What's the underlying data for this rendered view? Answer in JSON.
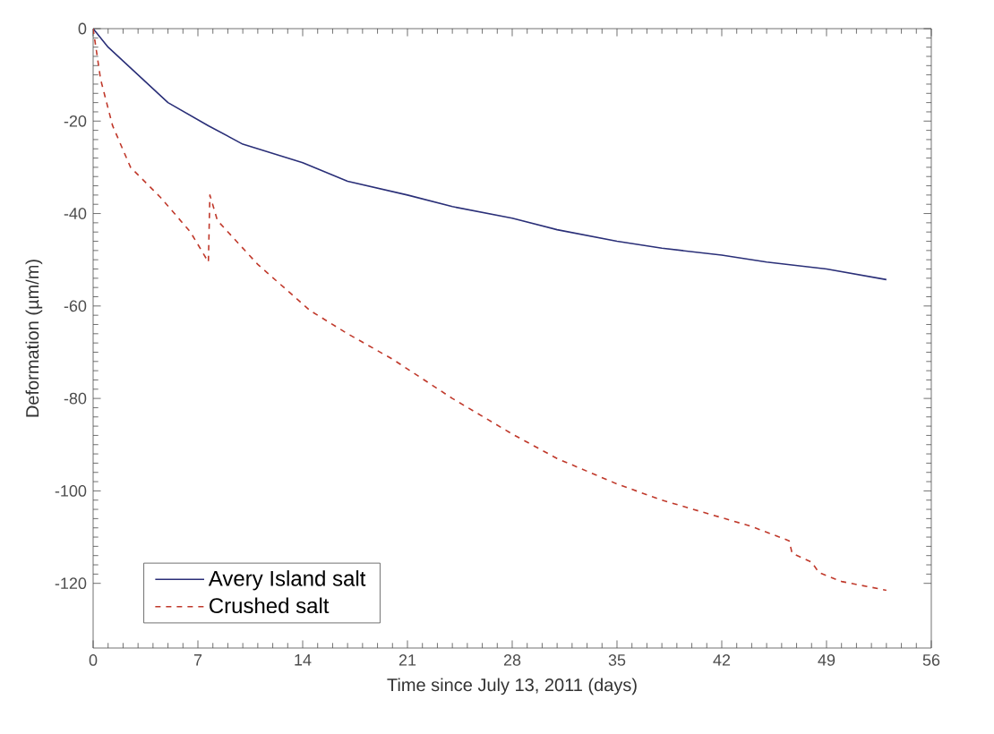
{
  "chart_data": {
    "type": "line",
    "xlabel": "Time since July 13, 2011 (days)",
    "ylabel": "Deformation (µm/m)",
    "xlim": [
      0,
      56
    ],
    "xticks": [
      0,
      7,
      14,
      21,
      28,
      35,
      42,
      49,
      56
    ],
    "ylim": [
      -134,
      0
    ],
    "yticks": [
      -120,
      -100,
      -80,
      -60,
      -40,
      -20,
      0
    ],
    "legend": "bottom left",
    "grid": false,
    "series": [
      {
        "name": "Avery Island salt",
        "color": "#2a2f78",
        "line_style": "solid",
        "x": [
          0,
          1,
          2,
          3,
          4,
          5,
          7.7,
          10,
          14,
          17,
          21,
          24,
          28,
          31,
          35,
          38,
          42,
          45,
          49,
          53
        ],
        "values": [
          0,
          -4,
          -7,
          -10,
          -13,
          -16,
          -21,
          -25,
          -29,
          -33,
          -36,
          -38.5,
          -41,
          -43.5,
          -46,
          -47.5,
          -49,
          -50.5,
          -52,
          -54.3
        ]
      },
      {
        "name": "Crushed salt",
        "color": "#c0392b",
        "line_style": "dashed",
        "x": [
          0,
          0.5,
          1.3,
          2.5,
          4.5,
          6.5,
          7.7,
          7.8,
          8.3,
          11,
          14.5,
          17,
          20,
          24,
          28,
          31,
          35,
          38,
          42,
          44,
          46.5,
          46.7,
          48,
          48.5,
          50,
          53
        ],
        "values": [
          0,
          -11,
          -21,
          -30,
          -36.5,
          -44,
          -50.5,
          -36,
          -41.5,
          -51,
          -61,
          -66,
          -71.5,
          -80,
          -87.7,
          -93,
          -98.5,
          -102,
          -105.8,
          -107.7,
          -110.8,
          -113.5,
          -115.4,
          -117.7,
          -119.6,
          -121.5
        ]
      }
    ]
  }
}
